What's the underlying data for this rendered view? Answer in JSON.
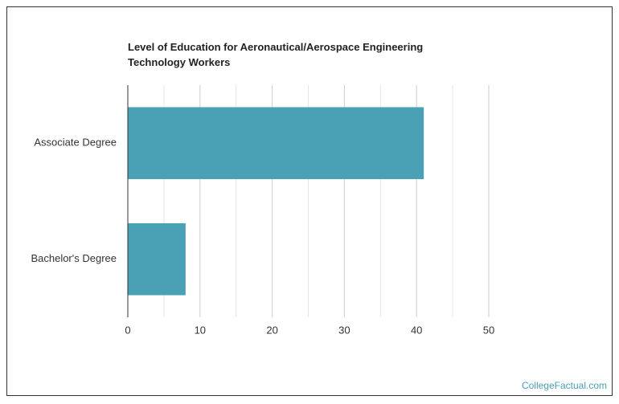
{
  "chart_data": {
    "type": "barh",
    "title": "Level of Education for Aeronautical/Aerospace Engineering Technology Workers",
    "categories": [
      "Associate Degree",
      "Bachelor's Degree"
    ],
    "values": [
      41,
      8
    ],
    "color": "#4aa0b4",
    "xlim": [
      0,
      50
    ],
    "xticks": [
      0,
      10,
      20,
      30,
      40,
      50
    ],
    "minor_xticks": [
      5,
      15,
      25,
      35,
      45
    ],
    "grid": true,
    "watermark": "CollegeFactual.com"
  }
}
